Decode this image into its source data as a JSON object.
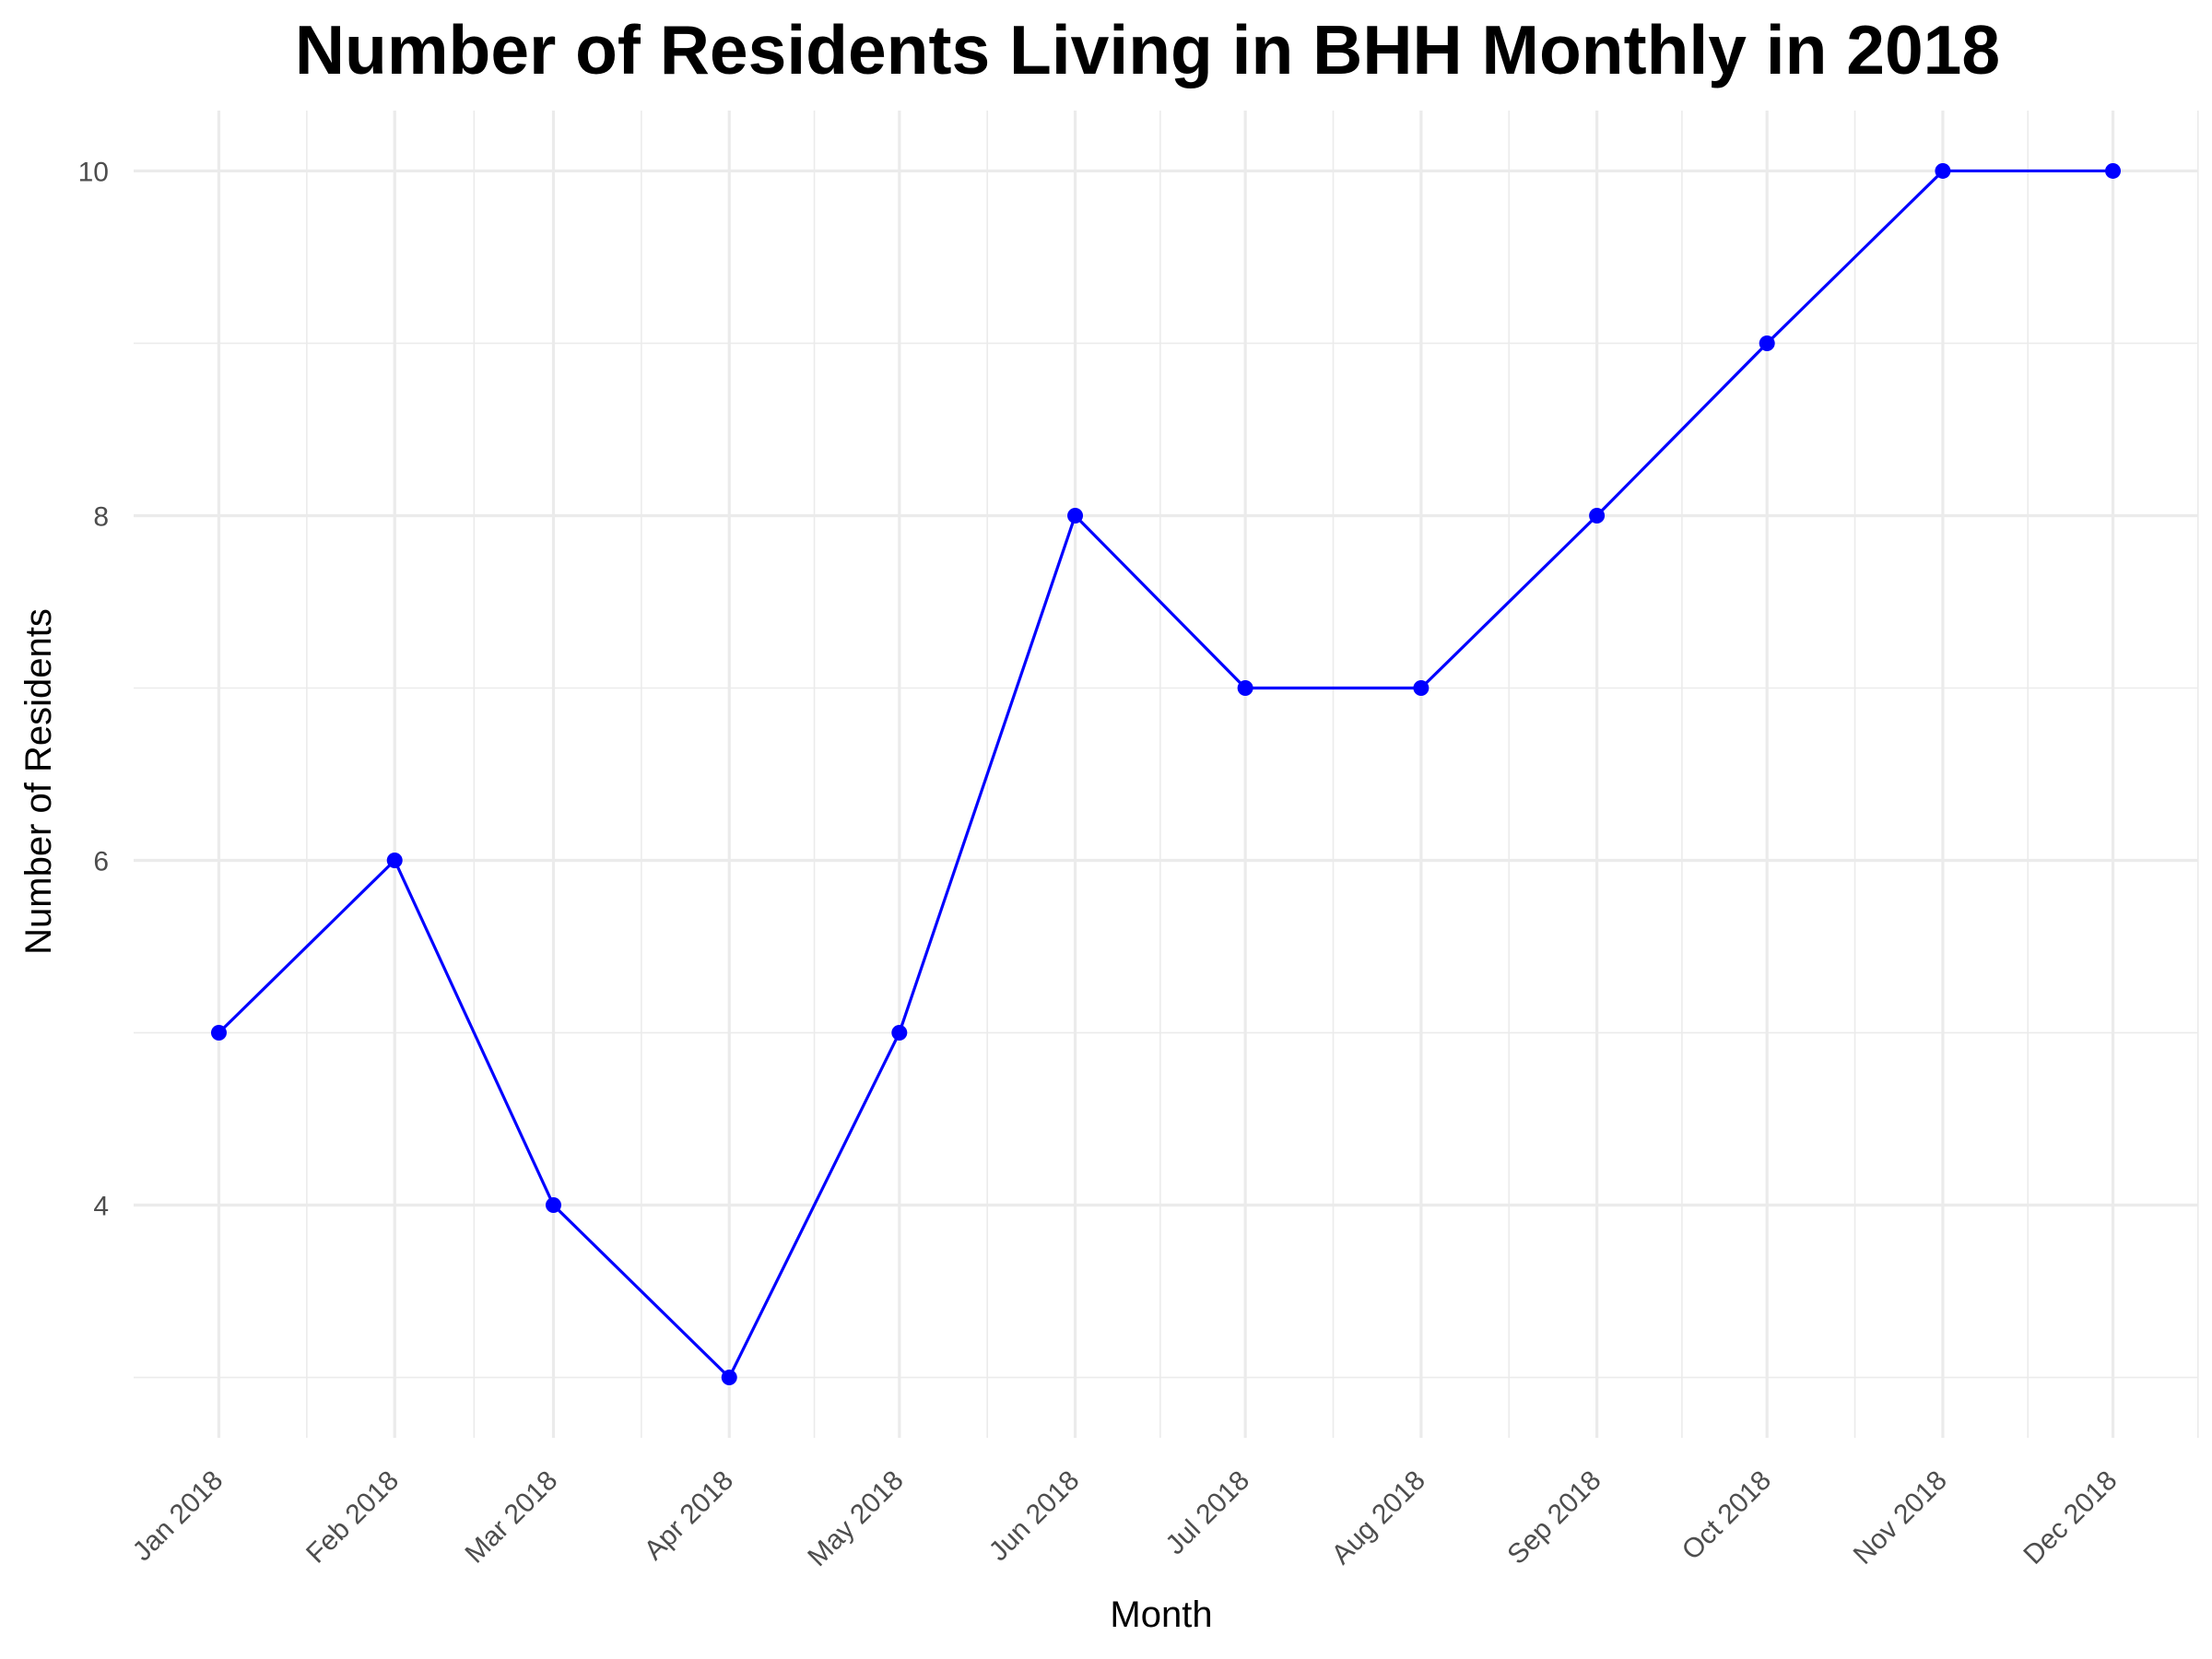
{
  "chart_data": {
    "type": "line",
    "title": "Number of Residents Living in BHH Monthly in 2018",
    "xlabel": "Month",
    "ylabel": "Number of Residents",
    "categories": [
      "Jan 2018",
      "Feb 2018",
      "Mar 2018",
      "Apr 2018",
      "May 2018",
      "Jun 2018",
      "Jul 2018",
      "Aug 2018",
      "Sep 2018",
      "Oct 2018",
      "Nov 2018",
      "Dec 2018"
    ],
    "x_dates": [
      "2018-01-01",
      "2018-02-01",
      "2018-03-01",
      "2018-04-01",
      "2018-05-01",
      "2018-06-01",
      "2018-07-01",
      "2018-08-01",
      "2018-09-01",
      "2018-10-01",
      "2018-11-01",
      "2018-12-01"
    ],
    "series": [
      {
        "values": [
          5,
          6,
          4,
          3,
          5,
          8,
          7,
          7,
          8,
          9,
          10,
          10
        ]
      }
    ],
    "ylim": [
      2.65,
      10.35
    ],
    "y_ticks": [
      4,
      6,
      8,
      10
    ],
    "y_tick_labels": [
      "4",
      "6",
      "8",
      "10"
    ],
    "grid": true,
    "x_tick_rotation": 45,
    "colors": {
      "line": "#0000ff",
      "points": "#0000ff",
      "grid": "#ebebeb",
      "tick_text": "#4d4d4d"
    }
  }
}
